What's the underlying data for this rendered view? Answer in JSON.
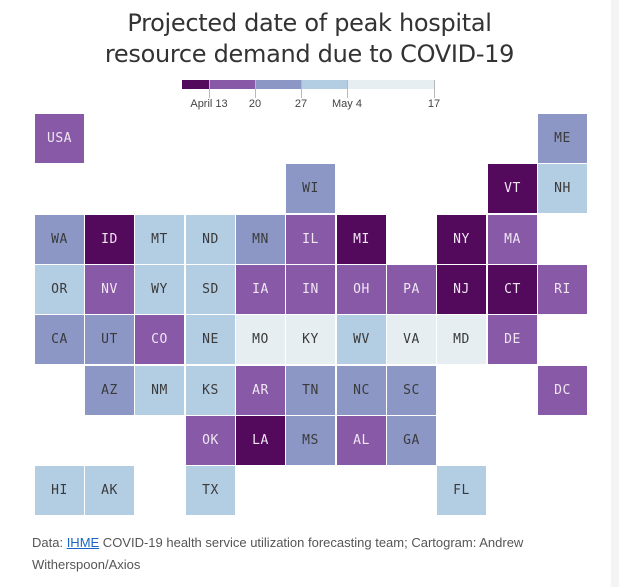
{
  "title": {
    "line1": "Projected date of peak hospital",
    "line2": "resource demand due to COVID-19"
  },
  "legend": {
    "bins": [
      {
        "label": "before April 13",
        "color": "#540a5c",
        "text_color": "#ffffff"
      },
      {
        "label": "April 13–20",
        "color": "#8759a6",
        "text_color": "#ffffff"
      },
      {
        "label": "April 20–27",
        "color": "#8c97c6",
        "text_color": "#333333"
      },
      {
        "label": "April 27–May 4",
        "color": "#b3cde3",
        "text_color": "#333333"
      },
      {
        "label": "May 4–17",
        "color": "#e6eef2",
        "text_color": "#333333"
      }
    ],
    "ticks": [
      "April 13",
      "20",
      "27",
      "May 4",
      "17"
    ]
  },
  "chart_data": {
    "type": "heatmap",
    "subtype": "tile-grid cartogram",
    "title": "Projected date of peak hospital resource demand due to COVID-19",
    "legend_placement": "top-center",
    "legend_bins": [
      "before April 13",
      "April 13–20",
      "April 20–27",
      "April 27–May 4",
      "May 4–17"
    ],
    "tiles": [
      {
        "abbr": "USA",
        "row": 0,
        "col": 0,
        "bin": 1
      },
      {
        "abbr": "ME",
        "row": 0,
        "col": 10,
        "bin": 2
      },
      {
        "abbr": "WI",
        "row": 1,
        "col": 5,
        "bin": 2
      },
      {
        "abbr": "VT",
        "row": 1,
        "col": 9,
        "bin": 0
      },
      {
        "abbr": "NH",
        "row": 1,
        "col": 10,
        "bin": 3
      },
      {
        "abbr": "WA",
        "row": 2,
        "col": 0,
        "bin": 2
      },
      {
        "abbr": "ID",
        "row": 2,
        "col": 1,
        "bin": 0
      },
      {
        "abbr": "MT",
        "row": 2,
        "col": 2,
        "bin": 3
      },
      {
        "abbr": "ND",
        "row": 2,
        "col": 3,
        "bin": 3
      },
      {
        "abbr": "MN",
        "row": 2,
        "col": 4,
        "bin": 2
      },
      {
        "abbr": "IL",
        "row": 2,
        "col": 5,
        "bin": 1
      },
      {
        "abbr": "MI",
        "row": 2,
        "col": 6,
        "bin": 0
      },
      {
        "abbr": "NY",
        "row": 2,
        "col": 8,
        "bin": 0
      },
      {
        "abbr": "MA",
        "row": 2,
        "col": 9,
        "bin": 1
      },
      {
        "abbr": "OR",
        "row": 3,
        "col": 0,
        "bin": 3
      },
      {
        "abbr": "NV",
        "row": 3,
        "col": 1,
        "bin": 1
      },
      {
        "abbr": "WY",
        "row": 3,
        "col": 2,
        "bin": 3
      },
      {
        "abbr": "SD",
        "row": 3,
        "col": 3,
        "bin": 3
      },
      {
        "abbr": "IA",
        "row": 3,
        "col": 4,
        "bin": 1
      },
      {
        "abbr": "IN",
        "row": 3,
        "col": 5,
        "bin": 1
      },
      {
        "abbr": "OH",
        "row": 3,
        "col": 6,
        "bin": 1
      },
      {
        "abbr": "PA",
        "row": 3,
        "col": 7,
        "bin": 1
      },
      {
        "abbr": "NJ",
        "row": 3,
        "col": 8,
        "bin": 0
      },
      {
        "abbr": "CT",
        "row": 3,
        "col": 9,
        "bin": 0
      },
      {
        "abbr": "RI",
        "row": 3,
        "col": 10,
        "bin": 1
      },
      {
        "abbr": "CA",
        "row": 4,
        "col": 0,
        "bin": 2
      },
      {
        "abbr": "UT",
        "row": 4,
        "col": 1,
        "bin": 2
      },
      {
        "abbr": "CO",
        "row": 4,
        "col": 2,
        "bin": 1
      },
      {
        "abbr": "NE",
        "row": 4,
        "col": 3,
        "bin": 3
      },
      {
        "abbr": "MO",
        "row": 4,
        "col": 4,
        "bin": 4
      },
      {
        "abbr": "KY",
        "row": 4,
        "col": 5,
        "bin": 4
      },
      {
        "abbr": "WV",
        "row": 4,
        "col": 6,
        "bin": 3
      },
      {
        "abbr": "VA",
        "row": 4,
        "col": 7,
        "bin": 4
      },
      {
        "abbr": "MD",
        "row": 4,
        "col": 8,
        "bin": 4
      },
      {
        "abbr": "DE",
        "row": 4,
        "col": 9,
        "bin": 1
      },
      {
        "abbr": "AZ",
        "row": 5,
        "col": 1,
        "bin": 2
      },
      {
        "abbr": "NM",
        "row": 5,
        "col": 2,
        "bin": 3
      },
      {
        "abbr": "KS",
        "row": 5,
        "col": 3,
        "bin": 3
      },
      {
        "abbr": "AR",
        "row": 5,
        "col": 4,
        "bin": 1
      },
      {
        "abbr": "TN",
        "row": 5,
        "col": 5,
        "bin": 2
      },
      {
        "abbr": "NC",
        "row": 5,
        "col": 6,
        "bin": 2
      },
      {
        "abbr": "SC",
        "row": 5,
        "col": 7,
        "bin": 2
      },
      {
        "abbr": "DC",
        "row": 5,
        "col": 10,
        "bin": 1
      },
      {
        "abbr": "OK",
        "row": 6,
        "col": 3,
        "bin": 1
      },
      {
        "abbr": "LA",
        "row": 6,
        "col": 4,
        "bin": 0
      },
      {
        "abbr": "MS",
        "row": 6,
        "col": 5,
        "bin": 2
      },
      {
        "abbr": "AL",
        "row": 6,
        "col": 6,
        "bin": 1
      },
      {
        "abbr": "GA",
        "row": 6,
        "col": 7,
        "bin": 2
      },
      {
        "abbr": "HI",
        "row": 7,
        "col": 0,
        "bin": 3
      },
      {
        "abbr": "AK",
        "row": 7,
        "col": 1,
        "bin": 3
      },
      {
        "abbr": "TX",
        "row": 7,
        "col": 3,
        "bin": 3
      },
      {
        "abbr": "FL",
        "row": 7,
        "col": 8,
        "bin": 3
      }
    ]
  },
  "footer": {
    "prefix": "Data: ",
    "link_text": "IHME",
    "rest": " COVID-19 health service utilization forecasting team; Cartogram: Andrew Witherspoon/Axios"
  }
}
